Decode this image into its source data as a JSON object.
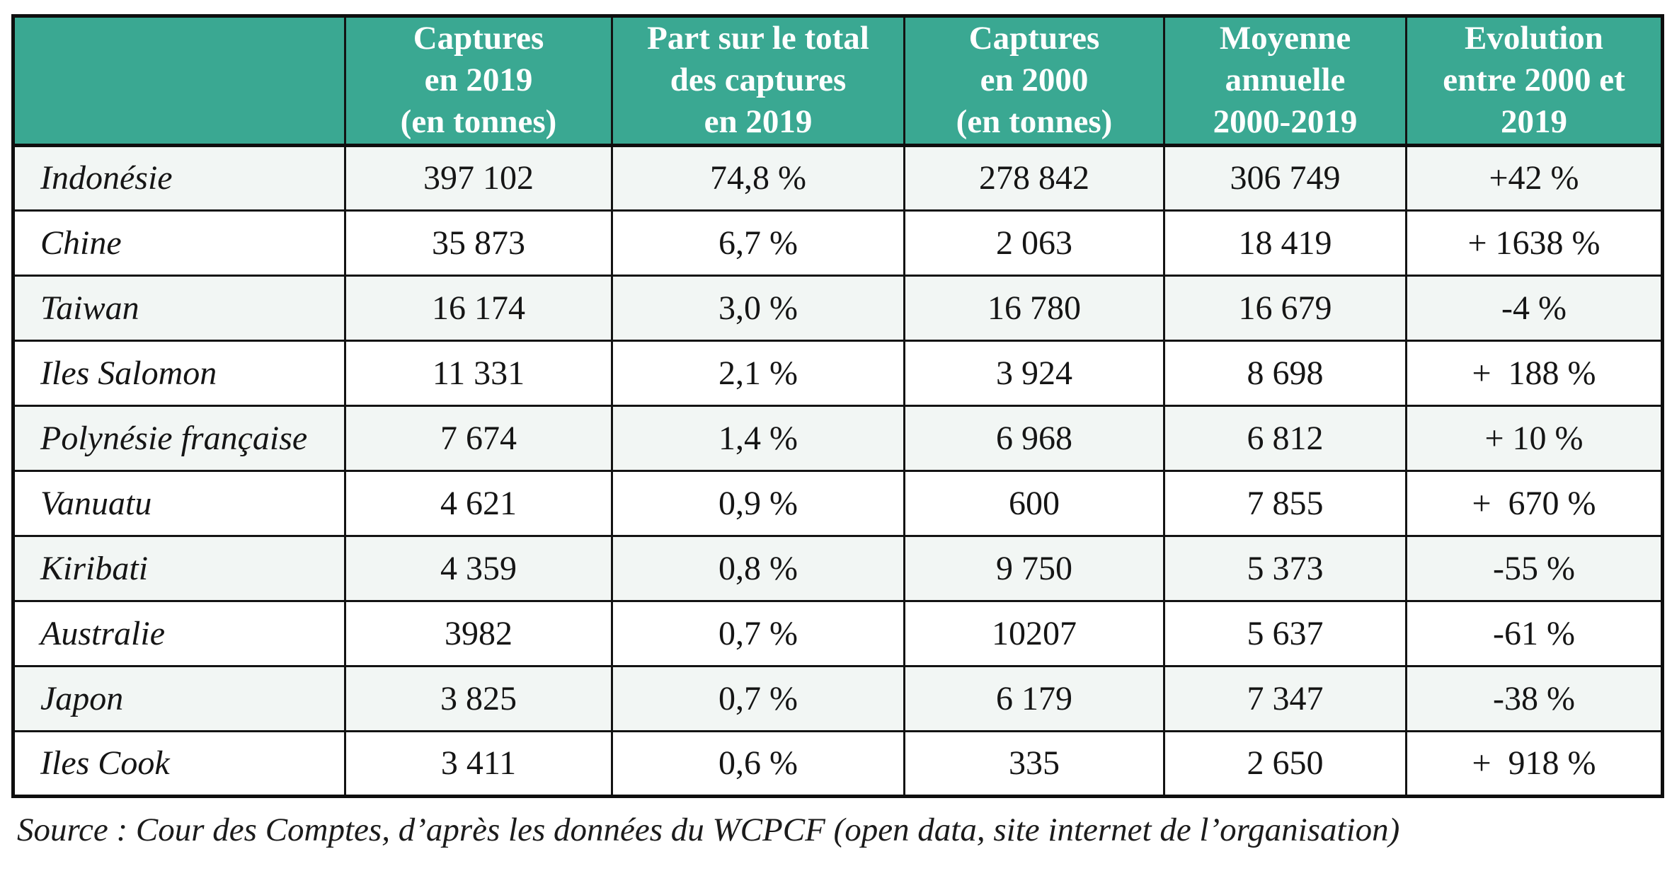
{
  "colors": {
    "header_bg": "#3AA892",
    "header_text": "#FFFFFF",
    "border": "#131313",
    "row_alt_bg": "#F2F6F4",
    "row_bg": "#FFFFFF",
    "body_text": "#151515"
  },
  "table": {
    "columns": [
      "",
      "Captures\nen 2019\n(en tonnes)",
      "Part sur le total\ndes captures\nen 2019",
      "Captures\nen 2000\n(en tonnes)",
      "Moyenne\nannuelle\n2000-2019",
      "Evolution\nentre 2000 et\n2019"
    ],
    "rows": [
      {
        "country": "Indonésie",
        "captures_2019": "397 102",
        "part_2019": "74,8 %",
        "captures_2000": "278 842",
        "moyenne_annuelle": "306 749",
        "evolution": "+42 %"
      },
      {
        "country": "Chine",
        "captures_2019": "35 873",
        "part_2019": "6,7 %",
        "captures_2000": "2 063",
        "moyenne_annuelle": "18 419",
        "evolution": "+ 1638 %"
      },
      {
        "country": "Taiwan",
        "captures_2019": "16 174",
        "part_2019": "3,0 %",
        "captures_2000": "16 780",
        "moyenne_annuelle": "16 679",
        "evolution": "-4 %"
      },
      {
        "country": "Iles Salomon",
        "captures_2019": "11 331",
        "part_2019": "2,1 %",
        "captures_2000": "3 924",
        "moyenne_annuelle": "8 698",
        "evolution": "+  188 %"
      },
      {
        "country": "Polynésie française",
        "captures_2019": "7 674",
        "part_2019": "1,4 %",
        "captures_2000": "6 968",
        "moyenne_annuelle": "6 812",
        "evolution": "+ 10 %"
      },
      {
        "country": "Vanuatu",
        "captures_2019": "4 621",
        "part_2019": "0,9 %",
        "captures_2000": "600",
        "moyenne_annuelle": "7 855",
        "evolution": "+  670 %"
      },
      {
        "country": "Kiribati",
        "captures_2019": "4 359",
        "part_2019": "0,8 %",
        "captures_2000": "9 750",
        "moyenne_annuelle": "5 373",
        "evolution": "-55 %"
      },
      {
        "country": "Australie",
        "captures_2019": "3982",
        "part_2019": "0,7 %",
        "captures_2000": "10207",
        "moyenne_annuelle": "5 637",
        "evolution": "-61 %"
      },
      {
        "country": "Japon",
        "captures_2019": "3 825",
        "part_2019": "0,7 %",
        "captures_2000": "6 179",
        "moyenne_annuelle": "7 347",
        "evolution": "-38 %"
      },
      {
        "country": "Iles Cook",
        "captures_2019": "3 411",
        "part_2019": "0,6 %",
        "captures_2000": "335",
        "moyenne_annuelle": "2 650",
        "evolution": "+  918 %"
      }
    ]
  },
  "source": "Source : Cour des Comptes, d’après les données du WCPCF (open data, site internet de l’organisation)"
}
